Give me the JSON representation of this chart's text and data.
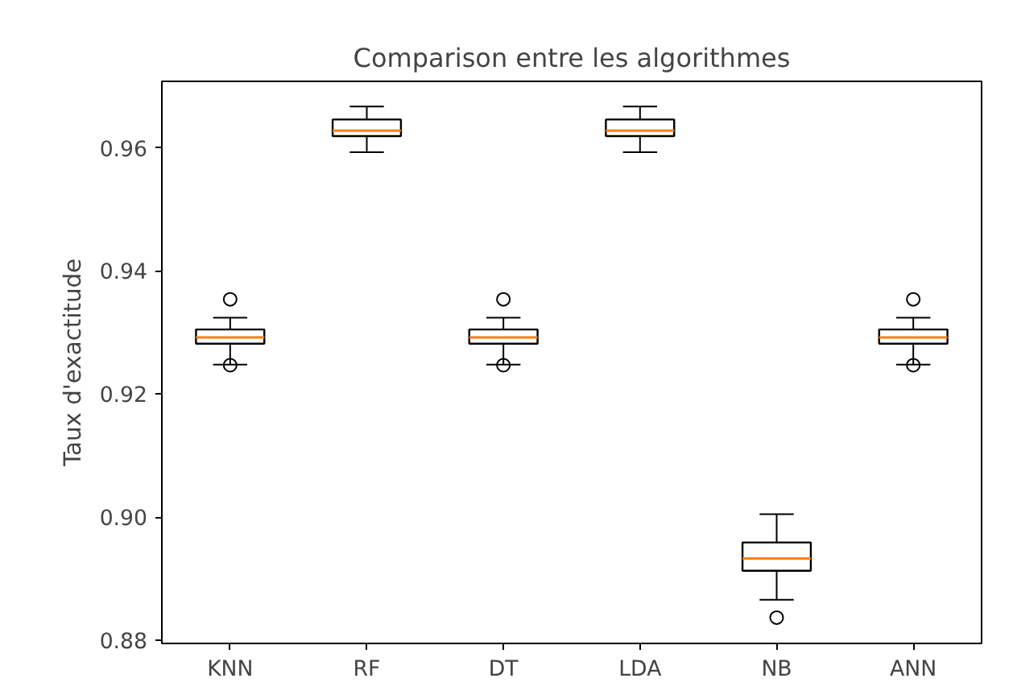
{
  "chart_data": {
    "type": "box",
    "title": "Comparison entre les algorithmes",
    "ylabel": "Taux d'exactitude",
    "categories": [
      "KNN",
      "RF",
      "DT",
      "LDA",
      "NB",
      "ANN"
    ],
    "boxes": [
      {
        "low": 0.9248,
        "q1": 0.9282,
        "median": 0.9292,
        "q3": 0.9305,
        "high": 0.9324,
        "outliers": [
          0.9354,
          0.9247
        ]
      },
      {
        "low": 0.9593,
        "q1": 0.9619,
        "median": 0.9628,
        "q3": 0.9646,
        "high": 0.9667
      },
      {
        "low": 0.9248,
        "q1": 0.9282,
        "median": 0.9292,
        "q3": 0.9305,
        "high": 0.9324,
        "outliers": [
          0.9354,
          0.9247
        ]
      },
      {
        "low": 0.9593,
        "q1": 0.9619,
        "median": 0.9628,
        "q3": 0.9646,
        "high": 0.9667
      },
      {
        "low": 0.8866,
        "q1": 0.8913,
        "median": 0.8933,
        "q3": 0.8959,
        "high": 0.9005,
        "outliers": [
          0.8837
        ]
      },
      {
        "low": 0.9248,
        "q1": 0.9282,
        "median": 0.9292,
        "q3": 0.9305,
        "high": 0.9324,
        "outliers": [
          0.9354,
          0.9247
        ]
      }
    ],
    "color": "#000000",
    "ylim": [
      0.8795,
      0.9708
    ],
    "yticks": [
      {
        "value": 0.88,
        "label": "0.88"
      },
      {
        "value": 0.9,
        "label": "0.90"
      },
      {
        "value": 0.92,
        "label": "0.92"
      },
      {
        "value": 0.94,
        "label": "0.94"
      },
      {
        "value": 0.96,
        "label": "0.96"
      }
    ],
    "grid": false
  }
}
